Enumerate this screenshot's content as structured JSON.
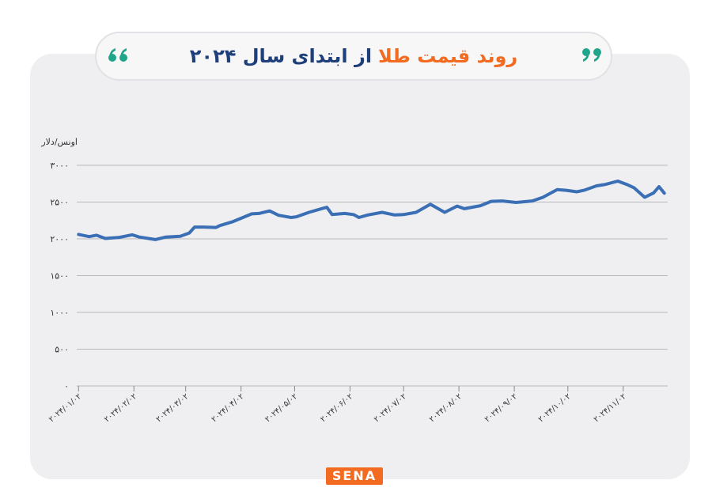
{
  "chart_data": {
    "type": "line",
    "title_segments": [
      "روند قیمت طلا",
      "از ابتدای سال ۲۰۲۴"
    ],
    "title_colors": [
      "#f26b21",
      "#1f3f7a"
    ],
    "y_label": "اونس/دلار",
    "source": "SENA",
    "x": [
      "2024-01-02",
      "2024-01-08",
      "2024-01-12",
      "2024-01-17",
      "2024-01-25",
      "2024-02-01",
      "2024-02-05",
      "2024-02-14",
      "2024-02-20",
      "2024-02-28",
      "2024-03-04",
      "2024-03-07",
      "2024-03-12",
      "2024-03-19",
      "2024-03-21",
      "2024-03-28",
      "2024-04-02",
      "2024-04-08",
      "2024-04-12",
      "2024-04-18",
      "2024-04-23",
      "2024-04-30",
      "2024-05-03",
      "2024-05-10",
      "2024-05-17",
      "2024-05-20",
      "2024-05-23",
      "2024-05-30",
      "2024-06-04",
      "2024-06-07",
      "2024-06-12",
      "2024-06-20",
      "2024-06-27",
      "2024-07-02",
      "2024-07-09",
      "2024-07-17",
      "2024-07-25",
      "2024-08-01",
      "2024-08-05",
      "2024-08-14",
      "2024-08-20",
      "2024-08-26",
      "2024-09-03",
      "2024-09-12",
      "2024-09-18",
      "2024-09-26",
      "2024-10-01",
      "2024-10-07",
      "2024-10-11",
      "2024-10-18",
      "2024-10-23",
      "2024-10-30",
      "2024-11-04",
      "2024-11-08",
      "2024-11-14",
      "2024-11-19",
      "2024-11-22",
      "2024-11-25"
    ],
    "series": [
      {
        "color": "#3a6fb5",
        "values": [
          2060,
          2030,
          2050,
          2005,
          2020,
          2055,
          2025,
          1990,
          2025,
          2035,
          2080,
          2160,
          2160,
          2155,
          2180,
          2230,
          2280,
          2340,
          2345,
          2380,
          2320,
          2290,
          2300,
          2360,
          2410,
          2430,
          2330,
          2345,
          2330,
          2290,
          2325,
          2360,
          2325,
          2330,
          2360,
          2470,
          2360,
          2445,
          2410,
          2450,
          2510,
          2515,
          2495,
          2515,
          2565,
          2670,
          2660,
          2640,
          2660,
          2720,
          2740,
          2785,
          2740,
          2695,
          2565,
          2625,
          2710,
          2620
        ]
      }
    ],
    "xlim": [
      "2024-01-01",
      "2024-11-26"
    ],
    "xticks": [
      {
        "value": "2024-01-02",
        "label": "۲۰۲۴/۰۱/۰۲"
      },
      {
        "value": "2024-02-02",
        "label": "۲۰۲۴/۰۲/۰۲"
      },
      {
        "value": "2024-03-02",
        "label": "۲۰۲۴/۰۳/۰۲"
      },
      {
        "value": "2024-04-02",
        "label": "۲۰۲۴/۰۴/۰۲"
      },
      {
        "value": "2024-05-02",
        "label": "۲۰۲۴/۰۵/۰۲"
      },
      {
        "value": "2024-06-02",
        "label": "۲۰۲۴/۰۶/۰۲"
      },
      {
        "value": "2024-07-02",
        "label": "۲۰۲۴/۰۷/۰۲"
      },
      {
        "value": "2024-08-02",
        "label": "۲۰۲۴/۰۸/۰۲"
      },
      {
        "value": "2024-09-02",
        "label": "۲۰۲۴/۰۹/۰۲"
      },
      {
        "value": "2024-10-02",
        "label": "۲۰۲۴/۱۰/۰۲"
      },
      {
        "value": "2024-11-02",
        "label": "۲۰۲۴/۱۱/۰۲"
      }
    ],
    "ylim": [
      0,
      3000
    ],
    "yticks": [
      {
        "value": 0,
        "label": "۰"
      },
      {
        "value": 500,
        "label": "۵۰۰"
      },
      {
        "value": 1000,
        "label": "۱۰۰۰"
      },
      {
        "value": 1500,
        "label": "۱۵۰۰"
      },
      {
        "value": 2000,
        "label": "۲۰۰۰"
      },
      {
        "value": 2500,
        "label": "۲۵۰۰"
      },
      {
        "value": 3000,
        "label": "۳۰۰۰"
      }
    ],
    "grid": true
  }
}
